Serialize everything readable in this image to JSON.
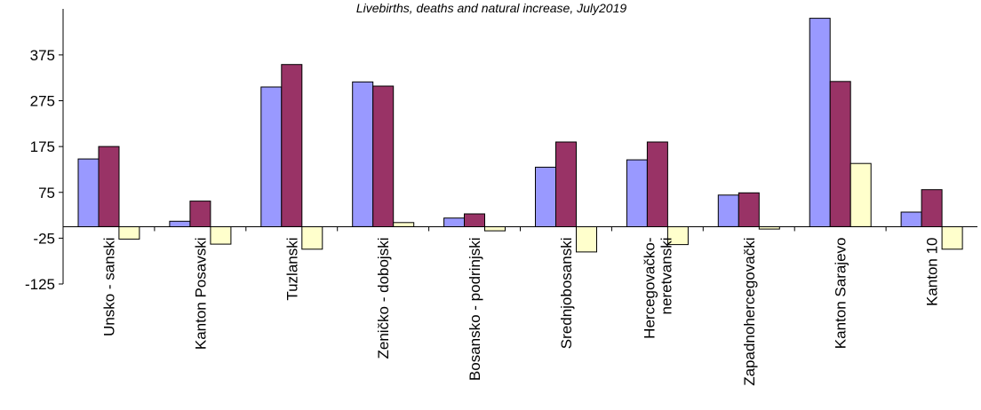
{
  "chart_data": {
    "type": "bar",
    "title": "Livebirths,  deaths  and  natural  increase,  July2019",
    "categories": [
      [
        "Unsko - sanski"
      ],
      [
        "Kanton Posavski"
      ],
      [
        "Tuzlanski"
      ],
      [
        "Zeničko - dobojski"
      ],
      [
        "Bosansko - podrinjski"
      ],
      [
        "Srednjobosanski"
      ],
      [
        "Hercegovačko-",
        "neretvanski"
      ],
      [
        "Zapadnohercegovački"
      ],
      [
        "Kanton Sarajevo"
      ],
      [
        "Kanton 10"
      ]
    ],
    "series": [
      {
        "color": "#9999ff",
        "values": [
          148,
          12,
          305,
          316,
          19,
          130,
          146,
          69,
          455,
          32
        ]
      },
      {
        "color": "#993366",
        "values": [
          175,
          56,
          354,
          307,
          28,
          185,
          185,
          74,
          317,
          81
        ]
      },
      {
        "color": "#ffffcc",
        "values": [
          -27,
          -38,
          -49,
          9,
          -9,
          -55,
          -39,
          -5,
          138,
          -49
        ]
      }
    ],
    "yticks": [
      375,
      275,
      175,
      75,
      -25,
      -125
    ],
    "ylim": [
      -125,
      460
    ],
    "xlabel": "",
    "ylabel": ""
  }
}
